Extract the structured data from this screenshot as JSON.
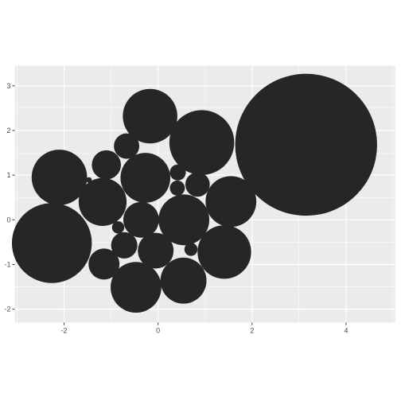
{
  "chart_data": {
    "type": "scatter",
    "xlim": [
      -3.05,
      5.05
    ],
    "ylim": [
      -2.3,
      3.45
    ],
    "x_ticks": [
      -2,
      0,
      2,
      4
    ],
    "y_ticks": [
      -2,
      -1,
      0,
      1,
      2,
      3
    ],
    "x_tick_labels": [
      "-2",
      "0",
      "2",
      "4"
    ],
    "y_tick_labels": [
      "-2",
      "-1",
      "0",
      "1",
      "2",
      "3"
    ],
    "grid": true,
    "legend": "none",
    "panel_color": "#ebebeb",
    "grid_color": "#ffffff",
    "point_color": "#262626",
    "points": [
      {
        "x": 3.15,
        "y": 1.68,
        "r": 1.51
      },
      {
        "x": -2.26,
        "y": -0.52,
        "r": 0.85
      },
      {
        "x": -2.1,
        "y": 0.95,
        "r": 0.59
      },
      {
        "x": -0.17,
        "y": 2.32,
        "r": 0.58
      },
      {
        "x": 0.93,
        "y": 1.73,
        "r": 0.69
      },
      {
        "x": -0.27,
        "y": 0.94,
        "r": 0.53
      },
      {
        "x": -1.18,
        "y": 0.4,
        "r": 0.51
      },
      {
        "x": 0.55,
        "y": 0.0,
        "r": 0.54
      },
      {
        "x": 1.55,
        "y": 0.41,
        "r": 0.54
      },
      {
        "x": 1.41,
        "y": -0.72,
        "r": 0.57
      },
      {
        "x": -0.47,
        "y": -1.51,
        "r": 0.54
      },
      {
        "x": 0.54,
        "y": -1.36,
        "r": 0.49
      },
      {
        "x": -0.36,
        "y": -0.0,
        "r": 0.38
      },
      {
        "x": -0.05,
        "y": -0.69,
        "r": 0.38
      },
      {
        "x": -1.15,
        "y": -0.99,
        "r": 0.33
      },
      {
        "x": -0.72,
        "y": -0.57,
        "r": 0.28
      },
      {
        "x": -1.1,
        "y": 1.23,
        "r": 0.31
      },
      {
        "x": -0.67,
        "y": 1.65,
        "r": 0.27
      },
      {
        "x": 0.84,
        "y": 0.79,
        "r": 0.26
      },
      {
        "x": 0.42,
        "y": 1.06,
        "r": 0.17
      },
      {
        "x": 0.41,
        "y": 0.71,
        "r": 0.16
      },
      {
        "x": -0.85,
        "y": -0.17,
        "r": 0.13
      },
      {
        "x": 0.7,
        "y": -0.66,
        "r": 0.14
      },
      {
        "x": -1.47,
        "y": 0.89,
        "r": 0.06
      }
    ]
  }
}
